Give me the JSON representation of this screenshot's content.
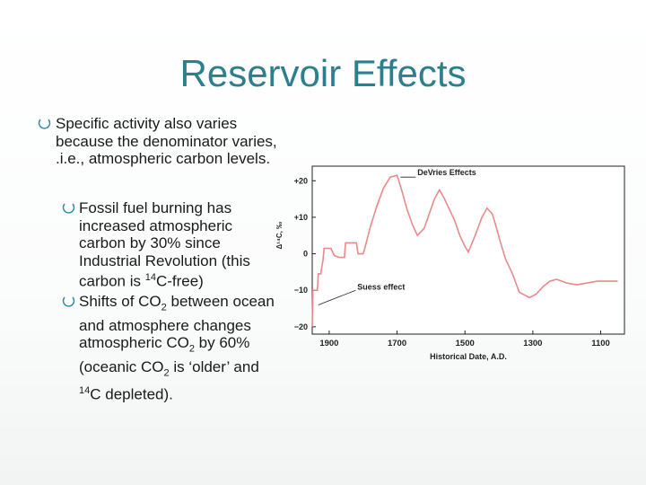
{
  "slide": {
    "title": "Reservoir Effects",
    "bullet1": "Specific activity also varies because the denominator varies, .i.e., atmospheric carbon levels.",
    "bullet2": {
      "text_a": "Fossil fuel burning has increased atmospheric carbon by 30% since Industrial Revolution (this carbon is ",
      "sup": "14",
      "text_b": "C-free)"
    },
    "bullet3": {
      "t1": "Shifts of CO",
      "s1": "2",
      "t2": " between ocean and atmosphere changes atmospheric CO",
      "s2": "2",
      "t3": " by 60% (oceanic CO",
      "s3": "2",
      "t4": " is ‘older’ and ",
      "sup": "14",
      "t5": "C depleted)."
    },
    "colors": {
      "title": "#2d7f8e",
      "bullet_marker": "#2d8a9e",
      "curve": "#e88a8a"
    }
  },
  "chart_data": {
    "type": "line",
    "xlabel": "Historical Date, A.D.",
    "ylabel": "Δ¹⁴C, ‰",
    "x_ticks": [
      "1900",
      "1700",
      "1500",
      "1300",
      "1100"
    ],
    "y_ticks": [
      "+20",
      "+10",
      "0",
      "−10",
      "−20"
    ],
    "x_reversed": true,
    "xlim": [
      1950,
      1030
    ],
    "ylim": [
      -22,
      24
    ],
    "grid": false,
    "annotations": [
      "DeVries Effects",
      "Suess effect"
    ],
    "series": [
      {
        "x": [
          1950,
          1948,
          1935,
          1932,
          1925,
          1918,
          1915,
          1905,
          1895,
          1885,
          1870,
          1855,
          1852,
          1835,
          1820,
          1815,
          1800,
          1795,
          1780,
          1760,
          1740,
          1720,
          1700,
          1685,
          1670,
          1655,
          1640,
          1620,
          1605,
          1590,
          1575,
          1560,
          1545,
          1530,
          1515,
          1500,
          1490,
          1470,
          1450,
          1435,
          1420,
          1410,
          1395,
          1380,
          1360,
          1340,
          1310,
          1290,
          1270,
          1250,
          1230,
          1200,
          1170,
          1140,
          1110,
          1080,
          1050
        ],
        "y": [
          -20,
          -10,
          -10,
          -5.5,
          -5.5,
          -1.5,
          1.5,
          1.5,
          1.5,
          -0.5,
          -1,
          -1,
          3,
          3,
          3,
          0,
          0,
          1.5,
          7,
          13,
          18,
          21,
          21.5,
          17,
          12,
          8,
          5,
          7,
          11,
          15,
          17.5,
          15,
          12,
          9,
          5,
          2,
          0.5,
          5,
          10,
          12.5,
          11,
          8,
          3,
          -1.5,
          -5.5,
          -10.5,
          -12,
          -11,
          -9,
          -7.5,
          -7,
          -8,
          -8.5,
          -8,
          -7.5,
          -7.5,
          -7.5
        ]
      }
    ]
  }
}
